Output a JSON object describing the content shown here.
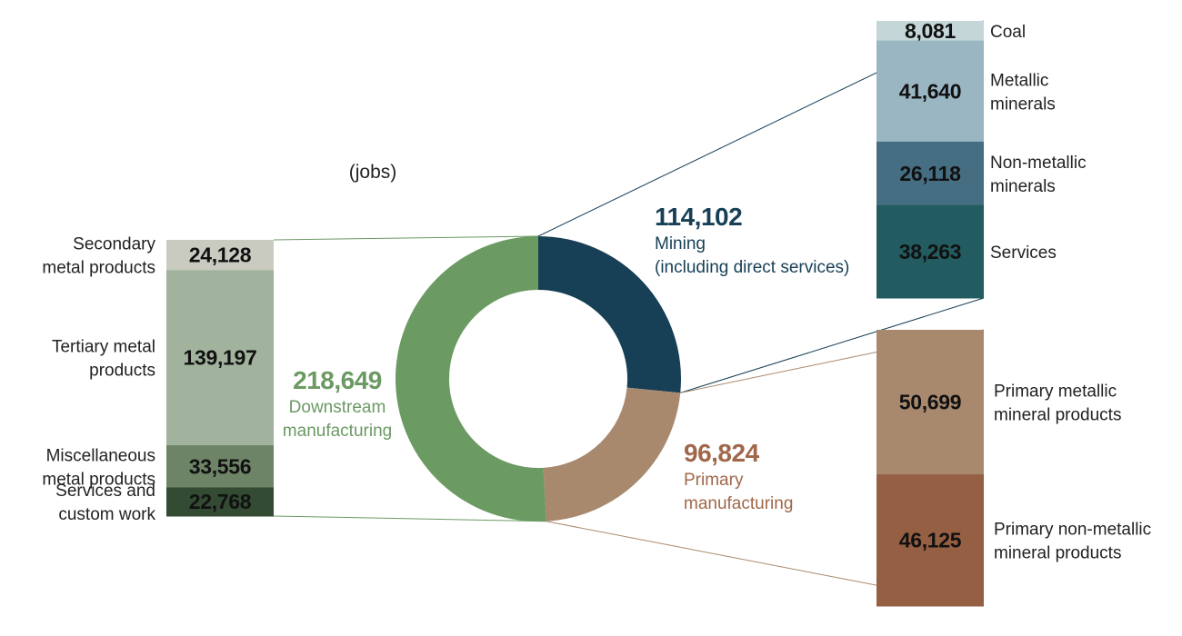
{
  "chart_data": {
    "type": "donut",
    "unit": "(jobs)",
    "segments": [
      {
        "key": "mining",
        "value_label": "114,102",
        "value": 114102,
        "name_lines": [
          "Mining",
          "(including direct services)"
        ],
        "color": "#173f55",
        "breakdown": [
          {
            "label_lines": [
              "Coal"
            ],
            "value": 8081,
            "value_label": "8,081",
            "color": "#c5d6d9"
          },
          {
            "label_lines": [
              "Metallic",
              "minerals"
            ],
            "value": 41640,
            "value_label": "41,640",
            "color": "#9ab6c3"
          },
          {
            "label_lines": [
              "Non-metallic",
              "minerals"
            ],
            "value": 26118,
            "value_label": "26,118",
            "color": "#466e82"
          },
          {
            "label_lines": [
              "Services"
            ],
            "value": 38263,
            "value_label": "38,263",
            "color": "#235c60"
          }
        ]
      },
      {
        "key": "primary",
        "value_label": "96,824",
        "value": 96824,
        "name_lines": [
          "Primary",
          "manufacturing"
        ],
        "color": "#a8896e",
        "breakdown": [
          {
            "label_lines": [
              "Primary metallic",
              "mineral products"
            ],
            "value": 50699,
            "value_label": "50,699",
            "color": "#a8896e"
          },
          {
            "label_lines": [
              "Primary non-metallic",
              "mineral products"
            ],
            "value": 46125,
            "value_label": "46,125",
            "color": "#955f44"
          }
        ]
      },
      {
        "key": "downstream",
        "value_label": "218,649",
        "value": 218649,
        "name_lines": [
          "Downstream",
          "manufacturing"
        ],
        "color": "#6b9a63",
        "breakdown": [
          {
            "label_lines": [
              "Secondary",
              "metal products"
            ],
            "value": 24128,
            "value_label": "24,128",
            "color": "#c9cbc1"
          },
          {
            "label_lines": [
              "Tertiary metal",
              "products"
            ],
            "value": 139197,
            "value_label": "139,197",
            "color": "#a1b39d"
          },
          {
            "label_lines": [
              "Miscellaneous",
              "metal products"
            ],
            "value": 33556,
            "value_label": "33,556",
            "color": "#6d8466"
          },
          {
            "label_lines": [
              "Services and",
              "custom work"
            ],
            "value": 22768,
            "value_label": "22,768",
            "color": "#344b33"
          }
        ]
      }
    ],
    "colors": {
      "mining_text": "#173f55",
      "primary_text": "#a0674a",
      "downstream_text": "#6b9a63",
      "mining_line": "#173f55",
      "primary_line": "#a8896e",
      "downstream_line": "#6b9a63"
    }
  }
}
